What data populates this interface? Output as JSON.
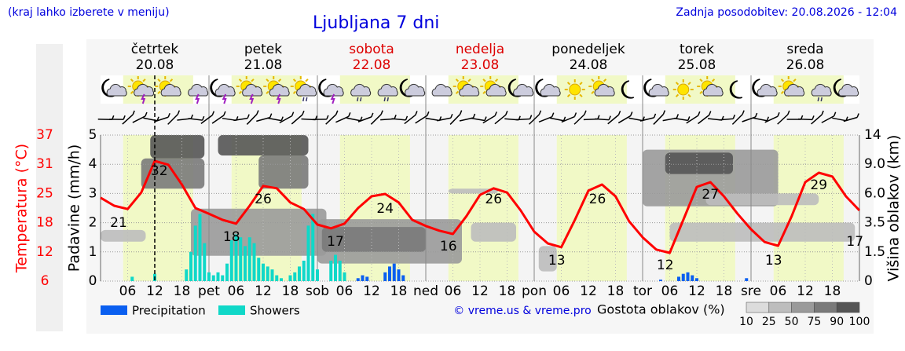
{
  "header": {
    "note": "(kraj lahko izberete v meniju)",
    "title": "Ljubljana 7 dni",
    "updated": "Zadnja posodobitev: 20.08.2026 - 12:04"
  },
  "chart_data": {
    "type": "meteogram",
    "days": [
      {
        "name": "četrtek",
        "date": "20.08",
        "color": "#000000"
      },
      {
        "name": "petek",
        "date": "21.08",
        "color": "#000000"
      },
      {
        "name": "sobota",
        "date": "22.08",
        "color": "#dd0000"
      },
      {
        "name": "nedelja",
        "date": "23.08",
        "color": "#dd0000"
      },
      {
        "name": "ponedeljek",
        "date": "24.08",
        "color": "#000000"
      },
      {
        "name": "torek",
        "date": "25.08",
        "color": "#000000"
      },
      {
        "name": "sreda",
        "date": "26.08",
        "color": "#000000"
      }
    ],
    "xlim": [
      0,
      168
    ],
    "xticks": [
      {
        "value": 6,
        "label": "06"
      },
      {
        "value": 12,
        "label": "12"
      },
      {
        "value": 18,
        "label": "18"
      },
      {
        "value": 24,
        "label": "pet"
      },
      {
        "value": 30,
        "label": "06"
      },
      {
        "value": 36,
        "label": "12"
      },
      {
        "value": 42,
        "label": "18"
      },
      {
        "value": 48,
        "label": "sob"
      },
      {
        "value": 54,
        "label": "06"
      },
      {
        "value": 60,
        "label": "12"
      },
      {
        "value": 66,
        "label": "18"
      },
      {
        "value": 72,
        "label": "ned"
      },
      {
        "value": 78,
        "label": "06"
      },
      {
        "value": 84,
        "label": "12"
      },
      {
        "value": 90,
        "label": "18"
      },
      {
        "value": 96,
        "label": "pon"
      },
      {
        "value": 102,
        "label": "06"
      },
      {
        "value": 108,
        "label": "12"
      },
      {
        "value": 114,
        "label": "18"
      },
      {
        "value": 120,
        "label": "tor"
      },
      {
        "value": 126,
        "label": "06"
      },
      {
        "value": 132,
        "label": "12"
      },
      {
        "value": 138,
        "label": "18"
      },
      {
        "value": 144,
        "label": "sre"
      },
      {
        "value": 150,
        "label": "06"
      },
      {
        "value": 156,
        "label": "12"
      },
      {
        "value": 162,
        "label": "18"
      }
    ],
    "now": 12,
    "ylabel": "Padavine (mm/h)",
    "ylim": [
      0,
      5
    ],
    "yticks": [
      0,
      1,
      2,
      3,
      4,
      5
    ],
    "y2label": "Višina oblakov (km)",
    "y2lim": [
      0,
      14
    ],
    "y2ticks": [
      0,
      1.5,
      3.5,
      {
        "value": 6,
        "label": "6.0"
      },
      {
        "value": 9,
        "label": "9.0"
      },
      14
    ],
    "temperature": {
      "label": "Temperatura (°C)",
      "color": "#ff0000",
      "lim": [
        6,
        37
      ],
      "ticks": [
        6,
        {
          "value": 12.2,
          "label": "12"
        },
        {
          "value": 18.4,
          "label": "18"
        },
        {
          "value": 24.6,
          "label": "25"
        },
        {
          "value": 30.8,
          "label": "31"
        },
        37
      ],
      "x": [
        0,
        3,
        6,
        9,
        12,
        15,
        18,
        21,
        24,
        27,
        30,
        33,
        36,
        39,
        42,
        45,
        48,
        51,
        54,
        57,
        60,
        63,
        66,
        69,
        72,
        75,
        78,
        81,
        84,
        87,
        90,
        93,
        96,
        99,
        102,
        105,
        108,
        111,
        114,
        117,
        120,
        123,
        126,
        129,
        132,
        135,
        138,
        141,
        144,
        147,
        150,
        153,
        156,
        159,
        162,
        165,
        168
      ],
      "values": [
        23.7,
        22,
        21.3,
        24.8,
        31.5,
        30.7,
        26.5,
        21.5,
        20.3,
        19,
        18.2,
        22,
        26.2,
        25.7,
        22.7,
        21.3,
        18,
        17.2,
        18.2,
        21.5,
        24,
        24.5,
        22.7,
        19,
        17.7,
        16.7,
        16,
        19.8,
        24.3,
        25.7,
        24.8,
        21,
        16.5,
        14,
        13.2,
        19,
        25.2,
        26.5,
        24,
        18.7,
        15.3,
        12.7,
        12,
        19,
        26,
        27,
        24,
        20.3,
        17,
        14.3,
        13.5,
        19.8,
        27,
        29,
        28.2,
        24,
        21
      ],
      "extremes": [
        {
          "x": 4,
          "value": 21
        },
        {
          "x": 13,
          "value": 32
        },
        {
          "x": 29,
          "value": 18
        },
        {
          "x": 36,
          "value": 26
        },
        {
          "x": 52,
          "value": 17
        },
        {
          "x": 63,
          "value": 24
        },
        {
          "x": 77,
          "value": 16
        },
        {
          "x": 87,
          "value": 26
        },
        {
          "x": 101,
          "value": 13
        },
        {
          "x": 110,
          "value": 26
        },
        {
          "x": 125,
          "value": 12
        },
        {
          "x": 135,
          "value": 27
        },
        {
          "x": 149,
          "value": 13
        },
        {
          "x": 159,
          "value": 29
        },
        {
          "x": 167,
          "value": 17
        }
      ]
    },
    "series": [
      {
        "name": "Precipitation",
        "color": "#0a5ff0",
        "x": [
          57,
          58,
          59,
          63,
          64,
          65,
          66,
          67,
          124,
          128,
          129,
          130,
          131,
          132,
          143
        ],
        "values": [
          0.1,
          0.2,
          0.15,
          0.3,
          0.5,
          0.6,
          0.4,
          0.2,
          0.05,
          0.15,
          0.25,
          0.3,
          0.2,
          0.1,
          0.1
        ]
      },
      {
        "name": "Showers",
        "color": "#10d8c8",
        "x": [
          7,
          12,
          19,
          20,
          21,
          22,
          23,
          24,
          25,
          26,
          27,
          28,
          29,
          30,
          31,
          32,
          33,
          34,
          35,
          36,
          37,
          38,
          39,
          40,
          42,
          43,
          44,
          45,
          46,
          47,
          48,
          51,
          52,
          53,
          54
        ],
        "values": [
          0.15,
          0.25,
          0.4,
          1.0,
          1.9,
          2.3,
          1.3,
          0.3,
          0.2,
          0.3,
          0.2,
          0.6,
          1.4,
          1.6,
          1.5,
          1.2,
          1.5,
          1.3,
          0.8,
          0.6,
          0.5,
          0.4,
          0.2,
          0.1,
          0.2,
          0.3,
          0.5,
          0.7,
          1.9,
          2.3,
          0.4,
          0.7,
          0.9,
          0.7,
          0.3
        ]
      }
    ],
    "cloud_density": {
      "label": "Gostota oblakov (%)",
      "levels": [
        10,
        25,
        50,
        75,
        90,
        100
      ],
      "colors": [
        "#dcdcdc",
        "#bdbdbd",
        "#9a9a9a",
        "#7a7a7a",
        "#555555"
      ]
    },
    "clouds": [
      {
        "x": [
          0,
          10
        ],
        "height": [
          2.2,
          3.0
        ],
        "density": 25
      },
      {
        "x": [
          9,
          23
        ],
        "height": [
          6.5,
          10
        ],
        "density": 75
      },
      {
        "x": [
          11,
          23
        ],
        "height": [
          10,
          14
        ],
        "density": 90
      },
      {
        "x": [
          20,
          50
        ],
        "height": [
          1.3,
          4.7
        ],
        "density": 50
      },
      {
        "x": [
          26,
          46
        ],
        "height": [
          10.5,
          14
        ],
        "density": 90
      },
      {
        "x": [
          35,
          46
        ],
        "height": [
          6.5,
          10.5
        ],
        "density": 75
      },
      {
        "x": [
          48,
          80
        ],
        "height": [
          0.9,
          3.8
        ],
        "density": 50
      },
      {
        "x": [
          49,
          72
        ],
        "height": [
          1.5,
          3.2
        ],
        "density": 75
      },
      {
        "x": [
          77,
          88
        ],
        "height": [
          6.0,
          6.5
        ],
        "density": 25
      },
      {
        "x": [
          82,
          92
        ],
        "height": [
          2.2,
          3.5
        ],
        "density": 25
      },
      {
        "x": [
          97,
          101
        ],
        "height": [
          0.5,
          1.9
        ],
        "density": 25
      },
      {
        "x": [
          120,
          150
        ],
        "height": [
          4.9,
          11.5
        ],
        "density": 50
      },
      {
        "x": [
          125,
          140
        ],
        "height": [
          8.0,
          11.0
        ],
        "density": 90
      },
      {
        "x": [
          134,
          159
        ],
        "height": [
          5.0,
          6.0
        ],
        "density": 25
      },
      {
        "x": [
          126,
          167
        ],
        "height": [
          2.2,
          3.5
        ],
        "density": 25
      }
    ],
    "credit": "© vreme.us & vreme.pro"
  }
}
